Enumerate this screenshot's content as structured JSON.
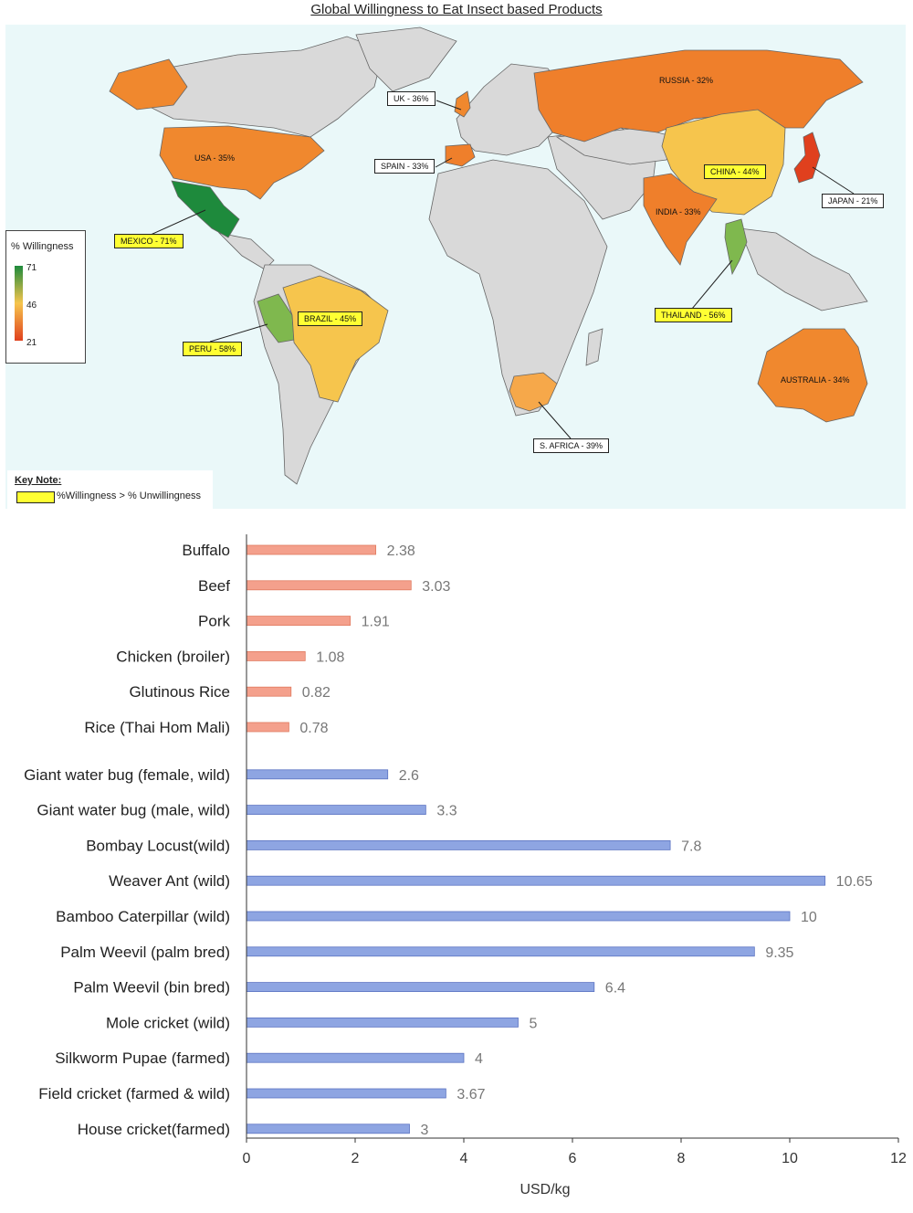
{
  "map": {
    "title": "Global Willingness to Eat Insect based Products",
    "legend": {
      "title": "% Willingness",
      "max": "71",
      "mid": "46",
      "min": "21"
    },
    "key_note": {
      "title": "Key Note:",
      "text": "%Willingness > % Unwillingness"
    },
    "countries": [
      {
        "id": "usa",
        "label": "USA - 35%",
        "color": "#f0882e",
        "boxed": false
      },
      {
        "id": "mexico",
        "label": "MEXICO - 71%",
        "color": "#1e8a3c",
        "boxed": true,
        "fill": "yellow"
      },
      {
        "id": "brazil",
        "label": "BRAZIL - 45%",
        "color": "#f6c54d",
        "boxed": true,
        "fill": "yellow"
      },
      {
        "id": "peru",
        "label": "PERU - 58%",
        "color": "#7fb84e",
        "boxed": true,
        "fill": "yellow"
      },
      {
        "id": "uk",
        "label": "UK - 36%",
        "color": "#f0882e",
        "boxed": true,
        "fill": "white"
      },
      {
        "id": "spain",
        "label": "SPAIN - 33%",
        "color": "#ef7f2b",
        "boxed": true,
        "fill": "white"
      },
      {
        "id": "russia",
        "label": "RUSSIA - 32%",
        "color": "#ef7f2b",
        "boxed": false
      },
      {
        "id": "china",
        "label": "CHINA - 44%",
        "color": "#f6c54d",
        "boxed": true,
        "fill": "yellow"
      },
      {
        "id": "india",
        "label": "INDIA - 33%",
        "color": "#ef7f2b",
        "boxed": false
      },
      {
        "id": "japan",
        "label": "JAPAN - 21%",
        "color": "#e0401e",
        "boxed": true,
        "fill": "white"
      },
      {
        "id": "thailand",
        "label": "THAILAND - 56%",
        "color": "#7fb84e",
        "boxed": true,
        "fill": "yellow"
      },
      {
        "id": "australia",
        "label": "AUSTRALIA - 34%",
        "color": "#f0882e",
        "boxed": false
      },
      {
        "id": "south-africa",
        "label": "S. AFRICA - 39%",
        "color": "#f6a84a",
        "boxed": true,
        "fill": "white"
      }
    ]
  },
  "chart_data": {
    "type": "bar",
    "orientation": "horizontal",
    "xlabel": "USD/kg",
    "xlim": [
      0,
      12
    ],
    "xticks": [
      "0",
      "2",
      "4",
      "6",
      "8",
      "10",
      "12"
    ],
    "grid": false,
    "series": [
      {
        "color": "#f4a08c",
        "categories": [
          "Buffalo",
          "Beef",
          "Pork",
          "Chicken (broiler)",
          "Glutinous Rice",
          "Rice (Thai Hom Mali)"
        ],
        "values": [
          2.38,
          3.03,
          1.91,
          1.08,
          0.82,
          0.78
        ],
        "labels": [
          "2.38",
          "3.03",
          "1.91",
          "1.08",
          "0.82",
          "0.78"
        ]
      },
      {
        "color": "#8ea5e2",
        "categories": [
          "Giant water bug (female, wild)",
          "Giant water bug (male, wild)",
          "Bombay Locust(wild)",
          "Weaver Ant (wild)",
          "Bamboo Caterpillar (wild)",
          "Palm Weevil (palm bred)",
          "Palm Weevil (bin bred)",
          "Mole cricket (wild)",
          "Silkworm Pupae (farmed)",
          "Field cricket (farmed & wild)",
          "House cricket(farmed)"
        ],
        "values": [
          2.6,
          3.3,
          7.8,
          10.65,
          10,
          9.35,
          6.4,
          5,
          4,
          3.67,
          3
        ],
        "labels": [
          "2.6",
          "3.3",
          "7.8",
          "10.65",
          "10",
          "9.35",
          "6.4",
          "5",
          "4",
          "3.67",
          "3"
        ]
      }
    ]
  }
}
